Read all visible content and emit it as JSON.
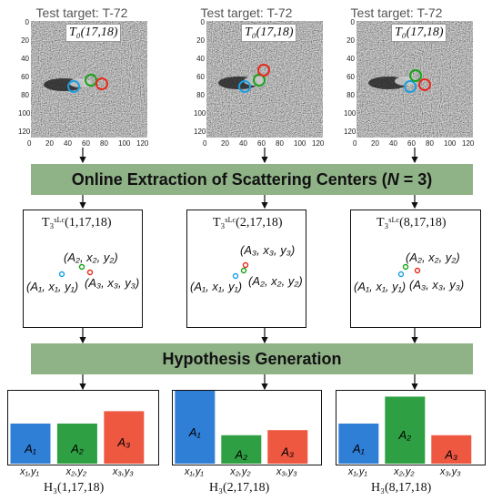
{
  "panels": [
    {
      "test_title": "Test target: T-72",
      "target_label": "T₀(17,18)",
      "slc_label": "T₃ˢᴸᶜ(1,17,18)",
      "hyp_label": "H₃(1,17,18)",
      "points": [
        {
          "text": "(A₂, x₂, y₂)",
          "color": "#1aa31a"
        },
        {
          "text": "(A₁, x₁, y₁)",
          "color": "#1b9fe0"
        },
        {
          "text": "(A₃, x₃, y₃)",
          "color": "#e8291b"
        }
      ],
      "bars": [
        {
          "label": "A₁",
          "xtick": "x₁,y₁",
          "value": 0.55,
          "color": "#2f7fd6"
        },
        {
          "label": "A₂",
          "xtick": "x₂,y₂",
          "value": 0.55,
          "color": "#2ea043"
        },
        {
          "label": "A₃",
          "xtick": "x₃,y₃",
          "value": 0.72,
          "color": "#ee5740"
        }
      ]
    },
    {
      "test_title": "Test target: T-72",
      "target_label": "T₀(17,18)",
      "slc_label": "T₃ˢᴸᶜ(2,17,18)",
      "hyp_label": "H₃(2,17,18)",
      "points": [
        {
          "text": "(A₃, x₃, y₃)",
          "color": "#e8291b"
        },
        {
          "text": "(A₁, x₁, y₁)",
          "color": "#1b9fe0"
        },
        {
          "text": "(A₂, x₂, y₂)",
          "color": "#1aa31a"
        }
      ],
      "bars": [
        {
          "label": "A₁",
          "xtick": "x₁,y₁",
          "value": 1.0,
          "color": "#2f7fd6"
        },
        {
          "label": "A₂",
          "xtick": "x₂,y₂",
          "value": 0.39,
          "color": "#2ea043"
        },
        {
          "label": "A₃",
          "xtick": "x₃,y₃",
          "value": 0.46,
          "color": "#ee5740"
        }
      ]
    },
    {
      "test_title": "Test target: T-72",
      "target_label": "T₀(17,18)",
      "slc_label": "T₃ˢᴸᶜ(8,17,18)",
      "hyp_label": "H₃(8,17,18)",
      "points": [
        {
          "text": "(A₂, x₂, y₂)",
          "color": "#1aa31a"
        },
        {
          "text": "(A₁, x₁, y₁)",
          "color": "#1b9fe0"
        },
        {
          "text": "(A₃, x₃, y₃)",
          "color": "#e8291b"
        }
      ],
      "bars": [
        {
          "label": "A₁",
          "xtick": "x₁,y₁",
          "value": 0.55,
          "color": "#2f7fd6"
        },
        {
          "label": "A₂",
          "xtick": "x₂,y₂",
          "value": 0.92,
          "color": "#2ea043"
        },
        {
          "label": "A₃",
          "xtick": "x₃,y₃",
          "value": 0.39,
          "color": "#ee5740"
        }
      ]
    }
  ],
  "stage1": "Online Extraction of Scattering Centers (",
  "stage1_var": "N",
  "stage1_tail": " = 3)",
  "stage2": "Hypothesis Generation",
  "axis_ticks_x": [
    "0",
    "20",
    "40",
    "60",
    "80",
    "100",
    "120"
  ],
  "axis_ticks_y": [
    "0",
    "20",
    "40",
    "60",
    "80",
    "100",
    "120"
  ]
}
